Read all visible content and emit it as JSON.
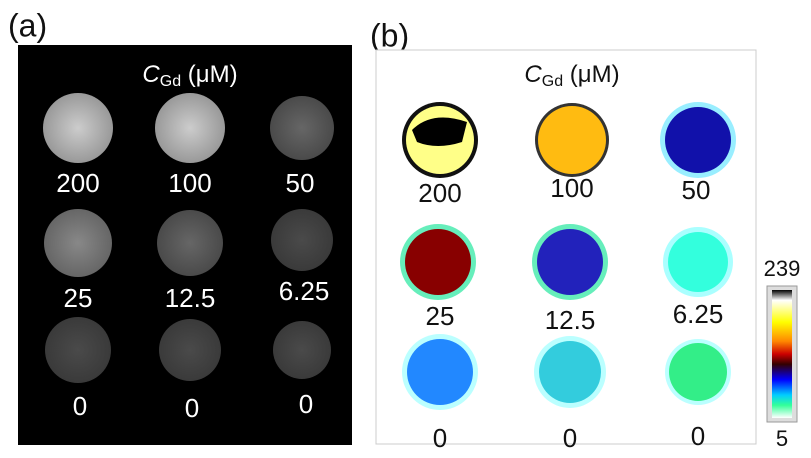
{
  "panels": [
    {
      "label": "(a)",
      "title": {
        "symbol": "C",
        "subscript": "Gd",
        "unit": " (μM)"
      },
      "concentrations": [
        "200",
        "100",
        "50",
        "25",
        "12.5",
        "6.25",
        "0",
        "0",
        "0"
      ]
    },
    {
      "label": "(b)",
      "title": {
        "symbol": "C",
        "subscript": "Gd",
        "unit": " (μM)"
      },
      "concentrations": [
        "200",
        "100",
        "50",
        "25",
        "12.5",
        "6.25",
        "0",
        "0",
        "0"
      ],
      "colorbar": {
        "max": 239,
        "min": 5
      }
    }
  ]
}
